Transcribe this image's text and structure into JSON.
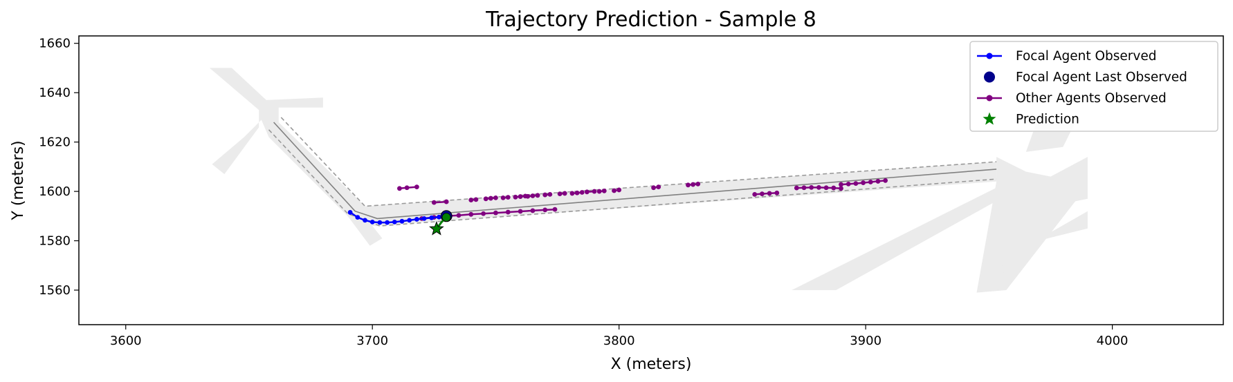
{
  "chart_data": {
    "type": "scatter",
    "title": "Trajectory Prediction - Sample 8",
    "xlabel": "X (meters)",
    "ylabel": "Y (meters)",
    "xlim": [
      3581,
      4045
    ],
    "ylim": [
      1546,
      1663
    ],
    "xticks": [
      3600,
      3700,
      3800,
      3900,
      4000
    ],
    "yticks": [
      1560,
      1580,
      1600,
      1620,
      1640,
      1660
    ],
    "grid": false,
    "legend_position": "top-right",
    "colors": {
      "focal": "#0000ff",
      "focal_last": "#00008b",
      "other": "#800080",
      "prediction": "#008000",
      "road": "#ebebeb",
      "lane_boundary": "#999999",
      "centerline": "#808080"
    },
    "legend": [
      {
        "label": "Focal Agent Observed",
        "marker": "line-dot",
        "color": "#0000ff"
      },
      {
        "label": "Focal Agent Last Observed",
        "marker": "big-dot",
        "color": "#00008b"
      },
      {
        "label": "Other Agents Observed",
        "marker": "line-dot",
        "color": "#800080"
      },
      {
        "label": "Prediction",
        "marker": "star",
        "color": "#008000"
      }
    ],
    "road_polygons": [
      [
        [
          3634,
          1650
        ],
        [
          3643,
          1650
        ],
        [
          3657,
          1637
        ],
        [
          3680,
          1638
        ],
        [
          3680,
          1634
        ],
        [
          3662,
          1634
        ],
        [
          3662,
          1628
        ],
        [
          3697,
          1594
        ],
        [
          3953,
          1612
        ],
        [
          3953,
          1604
        ],
        [
          3700,
          1586
        ],
        [
          3704,
          1581
        ],
        [
          3699,
          1578
        ],
        [
          3690,
          1590
        ],
        [
          3658,
          1622
        ],
        [
          3655,
          1629
        ],
        [
          3648,
          1622
        ],
        [
          3635,
          1611
        ],
        [
          3640,
          1607
        ],
        [
          3654,
          1626
        ],
        [
          3654,
          1633
        ]
      ],
      [
        [
          3953,
          1612
        ],
        [
          3953,
          1604
        ],
        [
          3945,
          1559
        ],
        [
          3957,
          1560
        ],
        [
          3985,
          1596
        ],
        [
          3990,
          1597
        ],
        [
          3990,
          1614
        ],
        [
          3975,
          1606
        ],
        [
          3965,
          1608
        ],
        [
          3953,
          1614
        ]
      ],
      [
        [
          3870,
          1560
        ],
        [
          3960,
          1605
        ],
        [
          3960,
          1600
        ],
        [
          3888,
          1560
        ]
      ],
      [
        [
          3970,
          1580
        ],
        [
          3957,
          1560
        ],
        [
          3955,
          1572
        ],
        [
          3990,
          1592
        ],
        [
          3990,
          1585
        ]
      ],
      [
        [
          3965,
          1616
        ],
        [
          3980,
          1618
        ],
        [
          3985,
          1628
        ],
        [
          3970,
          1630
        ]
      ]
    ],
    "lane_boundaries": [
      [
        [
          3663,
          1630
        ],
        [
          3697,
          1594
        ],
        [
          3953,
          1612
        ]
      ],
      [
        [
          3658,
          1625
        ],
        [
          3690,
          1591
        ],
        [
          3703,
          1586
        ],
        [
          3953,
          1605
        ]
      ]
    ],
    "centerlines": [
      [
        [
          3660,
          1628
        ],
        [
          3693,
          1592
        ],
        [
          3702,
          1589
        ],
        [
          3953,
          1609
        ]
      ]
    ],
    "focal_observed": {
      "x": [
        3691,
        3694,
        3697,
        3700,
        3703,
        3706,
        3709,
        3712,
        3715,
        3718,
        3721,
        3724,
        3727,
        3730
      ],
      "y": [
        1591.5,
        1589.5,
        1588.3,
        1587.6,
        1587.4,
        1587.4,
        1587.6,
        1587.9,
        1588.3,
        1588.7,
        1589.0,
        1589.3,
        1589.6,
        1589.9
      ]
    },
    "focal_last": {
      "x": 3730,
      "y": 1590
    },
    "prediction": {
      "x": [
        3726,
        3728,
        3730
      ],
      "y": [
        1584.8,
        1587.5,
        1589.5
      ]
    },
    "other_agents": [
      {
        "x": [
          3720,
          3725,
          3730,
          3735,
          3740,
          3745,
          3750,
          3755,
          3760,
          3765,
          3770,
          3774
        ],
        "y": [
          1589.0,
          1589.5,
          1590.0,
          1590.3,
          1590.7,
          1591.0,
          1591.3,
          1591.6,
          1591.9,
          1592.2,
          1592.5,
          1592.7
        ]
      },
      {
        "x": [
          3711,
          3714,
          3718
        ],
        "y": [
          1601.2,
          1601.5,
          1601.8
        ]
      },
      {
        "x": [
          3725,
          3730
        ],
        "y": [
          1595.5,
          1595.8
        ]
      },
      {
        "x": [
          3740,
          3742
        ],
        "y": [
          1596.5,
          1596.7
        ]
      },
      {
        "x": [
          3746,
          3748,
          3750
        ],
        "y": [
          1597.0,
          1597.2,
          1597.4
        ]
      },
      {
        "x": [
          3753,
          3755
        ],
        "y": [
          1597.4,
          1597.6
        ]
      },
      {
        "x": [
          3758,
          3760,
          3762
        ],
        "y": [
          1597.7,
          1597.9,
          1598.1
        ]
      },
      {
        "x": [
          3763,
          3765,
          3767
        ],
        "y": [
          1598.0,
          1598.2,
          1598.4
        ]
      },
      {
        "x": [
          3770,
          3772
        ],
        "y": [
          1598.6,
          1598.8
        ]
      },
      {
        "x": [
          3776,
          3778
        ],
        "y": [
          1599.0,
          1599.2
        ]
      },
      {
        "x": [
          3781,
          3783,
          3785
        ],
        "y": [
          1599.2,
          1599.4,
          1599.6
        ]
      },
      {
        "x": [
          3787,
          3790
        ],
        "y": [
          1599.8,
          1600.0
        ]
      },
      {
        "x": [
          3792,
          3794
        ],
        "y": [
          1600.0,
          1600.2
        ]
      },
      {
        "x": [
          3798,
          3800
        ],
        "y": [
          1600.3,
          1600.6
        ]
      },
      {
        "x": [
          3814,
          3816
        ],
        "y": [
          1601.5,
          1601.8
        ]
      },
      {
        "x": [
          3828,
          3830,
          3832
        ],
        "y": [
          1602.6,
          1602.8,
          1603.0
        ]
      },
      {
        "x": [
          3855,
          3858,
          3861,
          3864
        ],
        "y": [
          1598.8,
          1599.0,
          1599.2,
          1599.4
        ]
      },
      {
        "x": [
          3872,
          3875,
          3878,
          3881,
          3884,
          3887,
          3890
        ],
        "y": [
          1601.4,
          1601.5,
          1601.6,
          1601.6,
          1601.5,
          1601.4,
          1601.2
        ]
      },
      {
        "x": [
          3890,
          3893,
          3896,
          3899,
          3902,
          3905,
          3908
        ],
        "y": [
          1602.8,
          1603.0,
          1603.2,
          1603.5,
          1603.8,
          1604.1,
          1604.4
        ]
      }
    ]
  }
}
